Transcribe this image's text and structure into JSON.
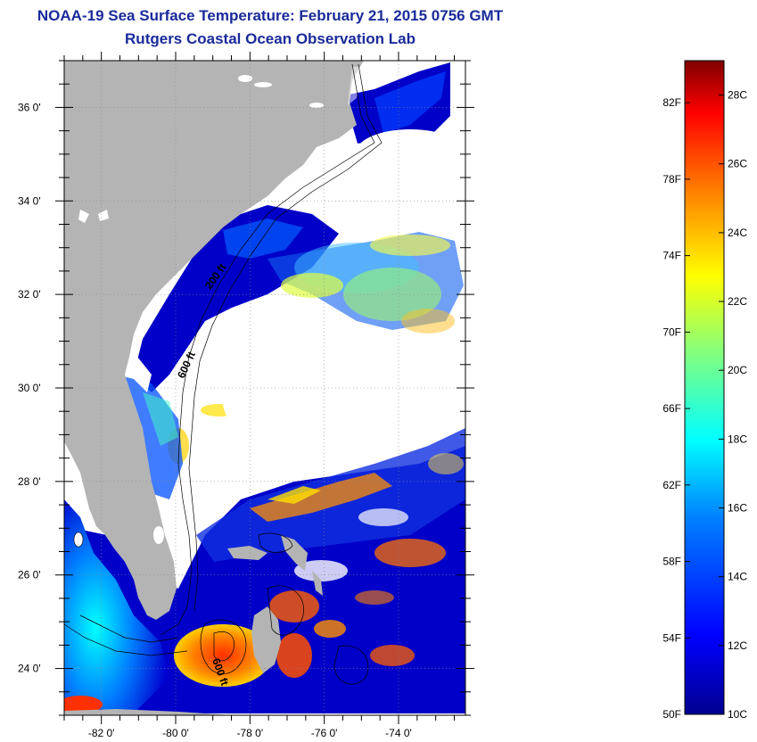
{
  "header": {
    "title": "NOAA-19 Sea Surface Temperature:  February 21, 2015 0756 GMT",
    "subtitle": "Rutgers Coastal Ocean Observation Lab"
  },
  "map": {
    "lat_labels": [
      {
        "lat": 36,
        "text": "36 0'"
      },
      {
        "lat": 34,
        "text": "34 0'"
      },
      {
        "lat": 32,
        "text": "32 0'"
      },
      {
        "lat": 30,
        "text": "30 0'"
      },
      {
        "lat": 28,
        "text": "28 0'"
      },
      {
        "lat": 26,
        "text": "26 0'"
      },
      {
        "lat": 24,
        "text": "24 0'"
      }
    ],
    "lon_labels": [
      {
        "lon": -82,
        "text": "-82 0'"
      },
      {
        "lon": -80,
        "text": "-80 0'"
      },
      {
        "lon": -78,
        "text": "-78 0'"
      },
      {
        "lon": -76,
        "text": "-76 0'"
      },
      {
        "lon": -74,
        "text": "-74 0'"
      }
    ],
    "lon_range": [
      -83,
      -72.2
    ],
    "lat_range": [
      23.0,
      37.0
    ],
    "contour_labels": [
      "200 ft",
      "600 ft",
      "600 ft"
    ],
    "land_color": "#b4b4b4",
    "ocean_cloud_color": "#ffffff"
  },
  "colorbar": {
    "fahrenheit_labels": [
      "82F",
      "78F",
      "74F",
      "70F",
      "66F",
      "62F",
      "58F",
      "54F",
      "50F"
    ],
    "celsius_labels": [
      "28C",
      "26C",
      "24C",
      "22C",
      "20C",
      "18C",
      "16C",
      "14C",
      "12C",
      "10C"
    ],
    "min_c": 10,
    "max_c": 29,
    "colors": [
      "#00008f",
      "#0000ff",
      "#0080ff",
      "#00ffff",
      "#80ff80",
      "#ffff00",
      "#ff8000",
      "#ff0000",
      "#800000"
    ]
  }
}
